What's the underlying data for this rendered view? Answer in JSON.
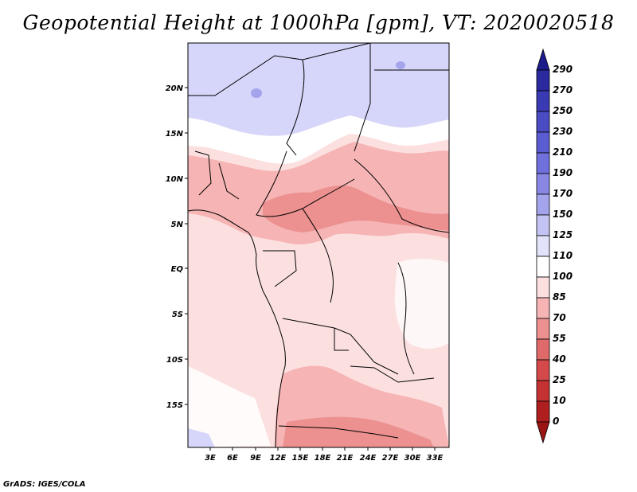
{
  "title": "Geopotential Height at 1000hPa [gpm], VT: 2020020518",
  "credit": "GrADS: IGES/COLA",
  "map": {
    "lat_labels": [
      "20N",
      "15N",
      "10N",
      "5N",
      "EQ",
      "5S",
      "10S",
      "15S"
    ],
    "lon_labels": [
      "3E",
      "6E",
      "9E",
      "12E",
      "15E",
      "18E",
      "21E",
      "24E",
      "27E",
      "30E",
      "33E"
    ]
  },
  "colorbar": {
    "labels": [
      "290",
      "270",
      "250",
      "230",
      "210",
      "190",
      "170",
      "150",
      "125",
      "110",
      "100",
      "85",
      "70",
      "55",
      "40",
      "25",
      "10",
      "0"
    ],
    "colors": [
      "#1c1c8c",
      "#2a2a9e",
      "#3a3ab4",
      "#4b4bc4",
      "#5c5cd2",
      "#7070dc",
      "#8888e4",
      "#a4a4ec",
      "#c4c4f4",
      "#e2e2fa",
      "#ffffff",
      "#fce0e0",
      "#f6b4b4",
      "#ec9090",
      "#e06a6a",
      "#d44a4a",
      "#c43232",
      "#b01f1f",
      "#9a1414"
    ]
  }
}
